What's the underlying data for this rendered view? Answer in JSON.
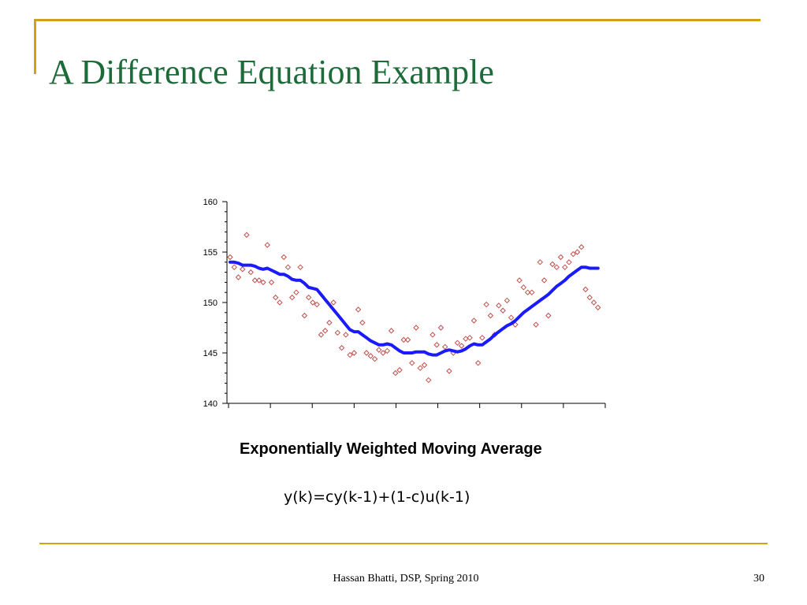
{
  "slide": {
    "title": "A Difference Equation Example",
    "caption": "Exponentially Weighted Moving Average",
    "formula": "y(k)=cy(k-1)+(1-c)u(k-1)",
    "footer": "Hassan Bhatti, DSP, Spring 2010",
    "page_number": "30"
  },
  "colors": {
    "accent": "#d4a017",
    "title": "#1e6b3a",
    "average_line": "#1a1aff",
    "samples": "#c0504d"
  },
  "chart_data": {
    "type": "scatter",
    "ylim": [
      140,
      160
    ],
    "xlim": [
      0,
      90
    ],
    "yticks": [
      "160",
      "155",
      "150",
      "145",
      "140"
    ],
    "x_ticks_count": 10,
    "grid": false,
    "series": [
      {
        "kind": "markers",
        "marker": "diamond",
        "x": [
          0,
          1,
          2,
          3,
          4,
          5,
          6,
          7,
          8,
          9,
          10,
          11,
          12,
          13,
          14,
          15,
          16,
          17,
          18,
          19,
          20,
          21,
          22,
          23,
          24,
          25,
          26,
          27,
          28,
          29,
          30,
          31,
          32,
          33,
          34,
          35,
          36,
          37,
          38,
          39,
          40,
          41,
          42,
          43,
          44,
          45,
          46,
          47,
          48,
          49,
          50,
          51,
          52,
          53,
          54,
          55,
          56,
          57,
          58,
          59,
          60,
          61,
          62,
          63,
          64,
          65,
          66,
          67,
          68,
          69,
          70,
          71,
          72,
          73,
          74,
          75,
          76,
          77,
          78,
          79,
          80,
          81,
          82,
          83,
          84,
          85,
          86,
          87,
          88,
          89
        ],
        "y": [
          154.5,
          153.5,
          152.5,
          153.3,
          156.7,
          153.0,
          152.2,
          152.2,
          152.0,
          155.7,
          152.0,
          150.5,
          150.0,
          154.5,
          153.5,
          150.5,
          151.0,
          153.5,
          148.7,
          150.5,
          150.0,
          149.8,
          146.8,
          147.2,
          148.0,
          150.0,
          147.0,
          145.5,
          146.8,
          144.8,
          145.0,
          149.3,
          148.0,
          145.0,
          144.7,
          144.4,
          145.3,
          145.0,
          145.2,
          147.2,
          143.0,
          143.3,
          146.3,
          146.3,
          144.0,
          147.5,
          143.5,
          143.8,
          142.3,
          146.8,
          145.8,
          147.5,
          145.6,
          143.2,
          145.0,
          146.0,
          145.7,
          146.4,
          146.5,
          148.2,
          144.0,
          146.5,
          149.8,
          148.7,
          146.8,
          149.7,
          149.2,
          150.2,
          148.5,
          147.8,
          152.2,
          151.5,
          151.0,
          151.0,
          147.8,
          154.0,
          152.2,
          148.7,
          153.8,
          153.5,
          154.5,
          153.5,
          154.0,
          154.8,
          155.0,
          155.5,
          151.3,
          150.5,
          150.0,
          149.5
        ]
      },
      {
        "kind": "line",
        "x": [
          0,
          1,
          2,
          3,
          4,
          5,
          6,
          7,
          8,
          9,
          10,
          11,
          12,
          13,
          14,
          15,
          16,
          17,
          18,
          19,
          20,
          21,
          22,
          23,
          24,
          25,
          26,
          27,
          28,
          29,
          30,
          31,
          32,
          33,
          34,
          35,
          36,
          37,
          38,
          39,
          40,
          41,
          42,
          43,
          44,
          45,
          46,
          47,
          48,
          49,
          50,
          51,
          52,
          53,
          54,
          55,
          56,
          57,
          58,
          59,
          60,
          61,
          62,
          63,
          64,
          65,
          66,
          67,
          68,
          69,
          70,
          71,
          72,
          73,
          74,
          75,
          76,
          77,
          78,
          79,
          80,
          81,
          82,
          83,
          84,
          85,
          86,
          87,
          88,
          89
        ],
        "y": [
          154.0,
          154.0,
          153.9,
          153.7,
          153.7,
          153.7,
          153.6,
          153.4,
          153.3,
          153.4,
          153.2,
          153.0,
          152.8,
          152.8,
          152.6,
          152.3,
          152.2,
          152.2,
          151.9,
          151.5,
          151.4,
          151.3,
          150.8,
          150.3,
          149.8,
          149.3,
          148.8,
          148.3,
          147.8,
          147.3,
          147.1,
          147.1,
          146.8,
          146.5,
          146.2,
          146.0,
          145.8,
          145.8,
          145.9,
          145.8,
          145.5,
          145.2,
          145.0,
          145.0,
          145.0,
          145.1,
          145.1,
          145.1,
          144.9,
          144.8,
          144.8,
          145.0,
          145.2,
          145.3,
          145.2,
          145.1,
          145.2,
          145.4,
          145.7,
          145.9,
          145.8,
          145.8,
          146.1,
          146.4,
          146.8,
          147.1,
          147.4,
          147.7,
          147.9,
          148.2,
          148.6,
          149.0,
          149.3,
          149.6,
          149.9,
          150.2,
          150.5,
          150.8,
          151.2,
          151.6,
          151.9,
          152.2,
          152.6,
          152.9,
          153.2,
          153.5,
          153.5,
          153.4,
          153.4,
          153.4
        ]
      }
    ]
  }
}
